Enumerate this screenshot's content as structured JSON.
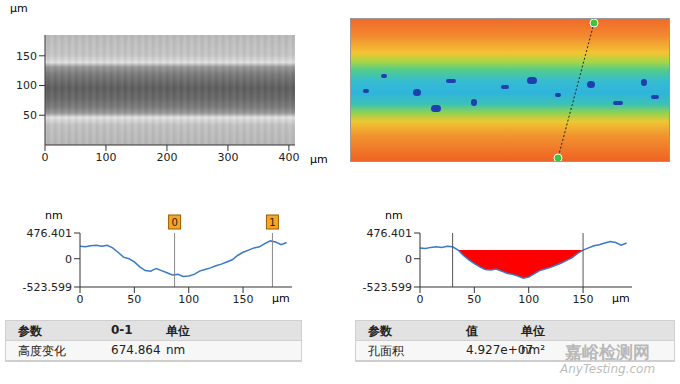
{
  "chart_data": [
    {
      "type": "image",
      "x_label": "µm",
      "y_label": "µm",
      "xlim": [
        0,
        410
      ],
      "ylim": [
        0,
        185
      ],
      "xticks": [
        0,
        100,
        200,
        300,
        400
      ],
      "yticks": [
        50,
        100,
        150
      ]
    },
    {
      "type": "line",
      "x_label": "µm",
      "y_label": "nm",
      "color": "#3a78c8",
      "x": [
        0,
        5,
        10,
        15,
        20,
        25,
        30,
        35,
        40,
        45,
        50,
        55,
        60,
        65,
        70,
        75,
        80,
        85,
        90,
        95,
        100,
        105,
        110,
        115,
        120,
        125,
        130,
        135,
        140,
        145,
        150,
        155,
        160,
        165,
        170,
        175,
        180,
        185,
        190
      ],
      "values": [
        230,
        220,
        240,
        250,
        230,
        250,
        200,
        120,
        30,
        0,
        -60,
        -150,
        -220,
        -230,
        -180,
        -220,
        -260,
        -300,
        -290,
        -330,
        -320,
        -290,
        -230,
        -200,
        -170,
        -130,
        -100,
        -60,
        -20,
        60,
        120,
        160,
        200,
        220,
        280,
        330,
        310,
        260,
        300
      ],
      "xlim": [
        0,
        195
      ],
      "ylim": [
        -523.599,
        476.401
      ],
      "xticks": [
        0,
        50,
        100,
        150
      ],
      "yticks": [
        -523.599,
        0,
        476.401
      ],
      "cursors": [
        {
          "label": "0",
          "x": 87
        },
        {
          "label": "1",
          "x": 177
        }
      ],
      "table": {
        "header": [
          "参数",
          "0-1",
          "单位"
        ],
        "rows": [
          [
            "高度变化",
            "674.864",
            "nm"
          ]
        ]
      }
    },
    {
      "type": "line",
      "x_label": "µm",
      "y_label": "nm",
      "color": "#3a78c8",
      "x": [
        0,
        5,
        10,
        15,
        20,
        25,
        30,
        35,
        40,
        45,
        50,
        55,
        60,
        65,
        70,
        75,
        80,
        85,
        90,
        95,
        100,
        105,
        110,
        115,
        120,
        125,
        130,
        135,
        140,
        145,
        150,
        155,
        160,
        165,
        170,
        175,
        180,
        185,
        190
      ],
      "values": [
        200,
        190,
        210,
        220,
        210,
        230,
        220,
        160,
        60,
        -20,
        -90,
        -150,
        -200,
        -210,
        -190,
        -230,
        -270,
        -290,
        -320,
        -360,
        -340,
        -280,
        -220,
        -190,
        -160,
        -120,
        -80,
        -30,
        20,
        100,
        160,
        200,
        240,
        260,
        290,
        320,
        300,
        250,
        290
      ],
      "xlim": [
        0,
        195
      ],
      "ylim": [
        -523.599,
        476.401
      ],
      "xticks": [
        0,
        50,
        100,
        150
      ],
      "yticks": [
        -523.599,
        0,
        476.401
      ],
      "fill_range": [
        30,
        150
      ],
      "fill_level": 160,
      "fill_color": "#ff0000",
      "table": {
        "header": [
          "参数",
          "值",
          "单位"
        ],
        "rows": [
          [
            "孔面积",
            "4.927e+07",
            "nm²"
          ]
        ]
      }
    }
  ],
  "watermark": [
    "嘉峪检测网",
    "AnyTesting.com"
  ]
}
